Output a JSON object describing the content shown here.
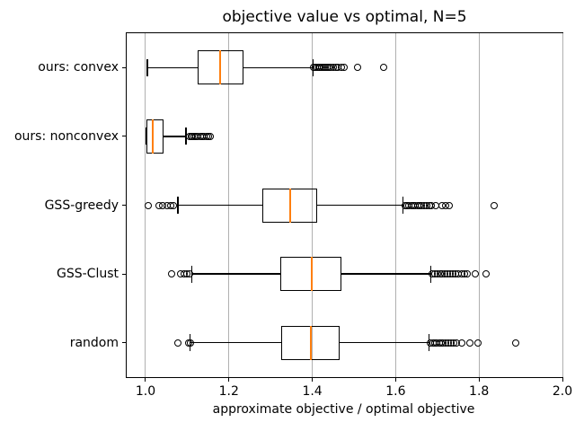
{
  "chart_data": {
    "type": "boxplot",
    "orientation": "horizontal",
    "title": "objective value vs optimal, N=5",
    "xlabel": "approximate objective / optimal objective",
    "xlim": [
      0.9548,
      2.0
    ],
    "xticks": [
      1.0,
      1.2,
      1.4,
      1.6,
      1.8,
      2.0
    ],
    "grid": true,
    "grid_color": "#b0b0b0",
    "box_color": "#000000",
    "median_color": "#ff7f0e",
    "series": [
      {
        "label": "ours: convex",
        "whisker_low": 1.004,
        "q1": 1.125,
        "median": 1.179,
        "q3": 1.234,
        "whisker_high": 1.402,
        "fliers": [
          1.403,
          1.407,
          1.411,
          1.415,
          1.419,
          1.423,
          1.427,
          1.431,
          1.435,
          1.44,
          1.445,
          1.45,
          1.456,
          1.462,
          1.469,
          1.477,
          1.508,
          1.572
        ]
      },
      {
        "label": "ours: nonconvex",
        "whisker_low": 1.001,
        "q1": 1.002,
        "median": 1.017,
        "q3": 1.043,
        "whisker_high": 1.097,
        "fliers": [
          1.105,
          1.109,
          1.113,
          1.117,
          1.121,
          1.126,
          1.131,
          1.136,
          1.141,
          1.146,
          1.151,
          1.156
        ]
      },
      {
        "label": "GSS-greedy",
        "whisker_low": 1.078,
        "q1": 1.281,
        "median": 1.348,
        "q3": 1.412,
        "whisker_high": 1.618,
        "fliers": [
          1.006,
          1.032,
          1.042,
          1.052,
          1.06,
          1.066,
          1.622,
          1.627,
          1.632,
          1.637,
          1.642,
          1.647,
          1.652,
          1.657,
          1.662,
          1.668,
          1.674,
          1.68,
          1.686,
          1.697,
          1.712,
          1.72,
          1.728,
          1.837
        ]
      },
      {
        "label": "GSS-Clust",
        "whisker_low": 1.111,
        "q1": 1.324,
        "median": 1.399,
        "q3": 1.469,
        "whisker_high": 1.684,
        "fliers": [
          1.062,
          1.084,
          1.092,
          1.1,
          1.106,
          1.688,
          1.694,
          1.7,
          1.706,
          1.712,
          1.718,
          1.724,
          1.73,
          1.737,
          1.744,
          1.751,
          1.758,
          1.765,
          1.772,
          1.792,
          1.817
        ]
      },
      {
        "label": "random",
        "whisker_low": 1.107,
        "q1": 1.326,
        "median": 1.397,
        "q3": 1.466,
        "whisker_high": 1.68,
        "fliers": [
          1.078,
          1.103,
          1.108,
          1.684,
          1.689,
          1.694,
          1.699,
          1.704,
          1.709,
          1.714,
          1.72,
          1.726,
          1.732,
          1.739,
          1.746,
          1.758,
          1.779,
          1.797,
          1.887
        ]
      }
    ]
  }
}
